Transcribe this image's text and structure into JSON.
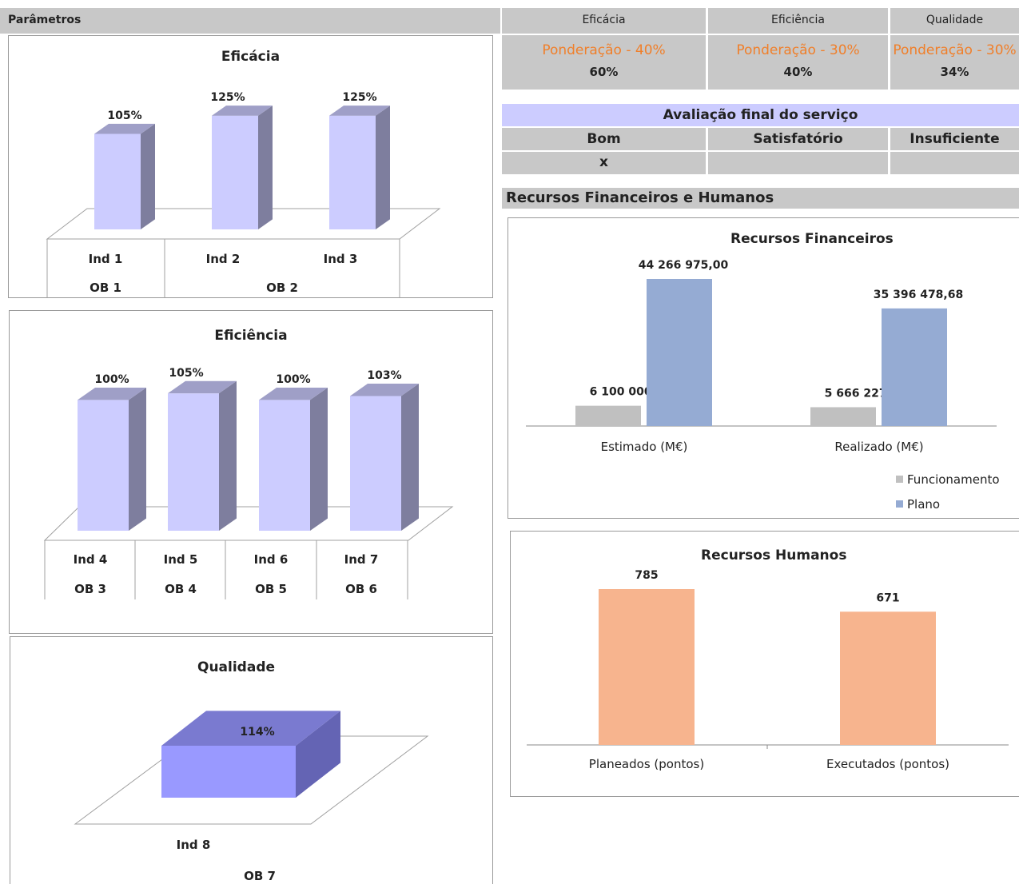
{
  "parametros": {
    "title": "Parâmetros"
  },
  "summary": {
    "columns": [
      {
        "name": "Eficácia",
        "weight": "Ponderação - 40%",
        "value": "60%"
      },
      {
        "name": "Eficiência",
        "weight": "Ponderação - 30%",
        "value": "40%"
      },
      {
        "name": "Qualidade",
        "weight": "Ponderação - 30%",
        "value": "34%"
      }
    ]
  },
  "avaliacao": {
    "title": "Avaliação final do serviço",
    "options": [
      "Bom",
      "Satisfatório",
      "Insuficiente"
    ],
    "marks": [
      "x",
      "",
      ""
    ]
  },
  "recursos_section": {
    "title": "Recursos Financeiros e Humanos"
  },
  "colors": {
    "indicator_bar": "#ccccff",
    "quality_bar": "#9999ff",
    "funcionamento": "#c0c0c0",
    "plano": "#95abd3",
    "humanos": "#f7b48e",
    "weight_text": "#f07f2a"
  },
  "chart_data": [
    {
      "type": "bar",
      "title": "Eficácia",
      "categories": [
        "Ind  1",
        "Ind  2",
        "Ind  3"
      ],
      "values": [
        105,
        125,
        125
      ],
      "value_labels": [
        "105%",
        "125%",
        "125%"
      ],
      "groups": [
        {
          "label": "OB 1",
          "span": 1
        },
        {
          "label": "OB 2",
          "span": 2
        }
      ],
      "ylim": [
        0,
        130
      ]
    },
    {
      "type": "bar",
      "title": "Eficiência",
      "categories": [
        "Ind 4",
        "Ind 5",
        "Ind 6",
        "Ind 7"
      ],
      "values": [
        100,
        105,
        100,
        103
      ],
      "value_labels": [
        "100%",
        "105%",
        "100%",
        "103%"
      ],
      "groups": [
        {
          "label": "OB 3",
          "span": 1
        },
        {
          "label": "OB 4",
          "span": 1
        },
        {
          "label": "OB 5",
          "span": 1
        },
        {
          "label": "OB 6",
          "span": 1
        }
      ],
      "ylim": [
        0,
        110
      ]
    },
    {
      "type": "bar",
      "title": "Qualidade",
      "categories": [
        "Ind  8"
      ],
      "values": [
        114
      ],
      "value_labels": [
        "114%"
      ],
      "groups": [
        {
          "label": "OB 7",
          "span": 1
        }
      ]
    },
    {
      "type": "bar",
      "title": "Recursos Financeiros",
      "categories": [
        "Estimado (M€)",
        "Realizado (M€)"
      ],
      "series": [
        {
          "name": "Funcionamento",
          "values": [
            6100000.0,
            5666227.9
          ],
          "labels": [
            "6 100 000,00",
            "5 666 227,90"
          ]
        },
        {
          "name": "Plano",
          "values": [
            44266975.0,
            35396478.68
          ],
          "labels": [
            "44 266 975,00",
            "35 396 478,68"
          ]
        }
      ],
      "ylim": [
        0,
        44266975.0
      ],
      "legend": "bottom-right"
    },
    {
      "type": "bar",
      "title": "Recursos Humanos",
      "categories": [
        "Planeados (pontos)",
        "Executados (pontos)"
      ],
      "values": [
        785,
        671
      ],
      "value_labels": [
        "785",
        "671"
      ],
      "ylim": [
        0,
        785
      ]
    }
  ]
}
